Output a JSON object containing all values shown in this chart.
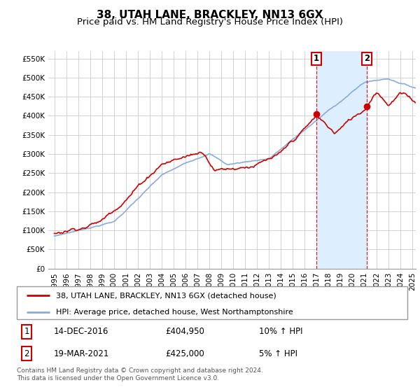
{
  "title": "38, UTAH LANE, BRACKLEY, NN13 6GX",
  "subtitle": "Price paid vs. HM Land Registry's House Price Index (HPI)",
  "ylim": [
    0,
    570000
  ],
  "yticks": [
    0,
    50000,
    100000,
    150000,
    200000,
    250000,
    300000,
    350000,
    400000,
    450000,
    500000,
    550000
  ],
  "legend_line1": "38, UTAH LANE, BRACKLEY, NN13 6GX (detached house)",
  "legend_line2": "HPI: Average price, detached house, West Northamptonshire",
  "annotation1_date": "14-DEC-2016",
  "annotation1_price": "£404,950",
  "annotation1_hpi": "10% ↑ HPI",
  "annotation2_date": "19-MAR-2021",
  "annotation2_price": "£425,000",
  "annotation2_hpi": "5% ↑ HPI",
  "footer": "Contains HM Land Registry data © Crown copyright and database right 2024.\nThis data is licensed under the Open Government Licence v3.0.",
  "line_color_red": "#cc0000",
  "line_color_blue": "#88aadd",
  "shade_color": "#ddeeff",
  "background_color": "#ffffff",
  "grid_color": "#cccccc",
  "box_color": "#cc0000",
  "title_fontsize": 11,
  "subtitle_fontsize": 9.5,
  "tick_fontsize": 7.5,
  "marker1_x": 2016.95,
  "marker1_y": 404950,
  "marker2_x": 2021.22,
  "marker2_y": 425000,
  "xmin": 1995.0,
  "xmax": 2025.3
}
